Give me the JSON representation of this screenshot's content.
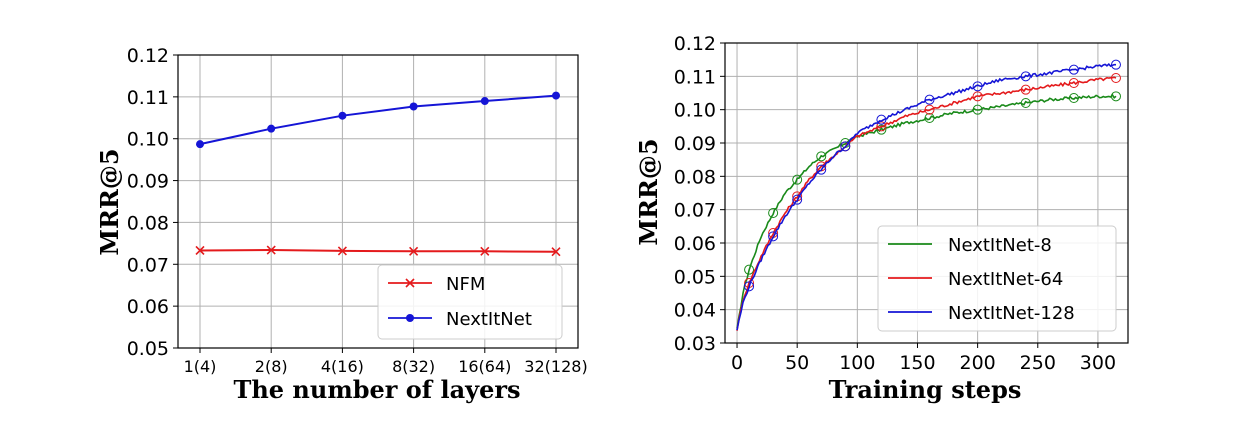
{
  "chart_data": [
    {
      "type": "line",
      "xlabel": "The number of layers",
      "ylabel": "MRR@5",
      "categories": [
        "1(4)",
        "2(8)",
        "4(16)",
        "8(32)",
        "16(64)",
        "32(128)"
      ],
      "ylim": [
        0.05,
        0.12
      ],
      "yticks": [
        "0.05",
        "0.06",
        "0.07",
        "0.08",
        "0.09",
        "0.10",
        "0.11",
        "0.12"
      ],
      "grid": true,
      "legend_position": "lower-right",
      "series": [
        {
          "name": "NFM",
          "color": "#e41a1c",
          "marker": "x",
          "values": [
            0.0733,
            0.0734,
            0.0732,
            0.0731,
            0.0731,
            0.073
          ]
        },
        {
          "name": "NextItNet",
          "color": "#1515d6",
          "marker": "circle",
          "values": [
            0.0987,
            0.1024,
            0.1055,
            0.1077,
            0.109,
            0.1103
          ]
        }
      ]
    },
    {
      "type": "line",
      "xlabel": "Training steps",
      "ylabel": "MRR@5",
      "xlim": [
        -10,
        325
      ],
      "xticks": [
        "0",
        "50",
        "100",
        "150",
        "200",
        "250",
        "300"
      ],
      "ylim": [
        0.03,
        0.12
      ],
      "yticks": [
        "0.03",
        "0.04",
        "0.05",
        "0.06",
        "0.07",
        "0.08",
        "0.09",
        "0.10",
        "0.11",
        "0.12"
      ],
      "grid": true,
      "legend_position": "lower-right",
      "series": [
        {
          "name": "NextItNet-8",
          "color": "#1a8a1a",
          "x": [
            0,
            5,
            10,
            20,
            30,
            40,
            50,
            60,
            70,
            80,
            90,
            100,
            120,
            140,
            160,
            180,
            200,
            220,
            240,
            260,
            280,
            300,
            315
          ],
          "y": [
            0.034,
            0.045,
            0.052,
            0.062,
            0.069,
            0.075,
            0.079,
            0.083,
            0.086,
            0.088,
            0.09,
            0.092,
            0.094,
            0.096,
            0.0975,
            0.099,
            0.1,
            0.101,
            0.102,
            0.103,
            0.1035,
            0.104,
            0.104
          ]
        },
        {
          "name": "NextItNet-64",
          "color": "#e41a1c",
          "x": [
            0,
            5,
            10,
            20,
            30,
            40,
            50,
            60,
            70,
            80,
            90,
            100,
            120,
            140,
            160,
            180,
            200,
            220,
            240,
            260,
            280,
            300,
            315
          ],
          "y": [
            0.034,
            0.043,
            0.048,
            0.056,
            0.063,
            0.069,
            0.074,
            0.079,
            0.083,
            0.086,
            0.089,
            0.092,
            0.095,
            0.098,
            0.1,
            0.102,
            0.104,
            0.105,
            0.106,
            0.107,
            0.108,
            0.109,
            0.1095
          ]
        },
        {
          "name": "NextItNet-128",
          "color": "#1515d6",
          "x": [
            0,
            5,
            10,
            20,
            30,
            40,
            50,
            60,
            70,
            80,
            90,
            100,
            120,
            140,
            160,
            180,
            200,
            220,
            240,
            260,
            280,
            300,
            315
          ],
          "y": [
            0.034,
            0.042,
            0.047,
            0.055,
            0.062,
            0.068,
            0.073,
            0.078,
            0.082,
            0.086,
            0.089,
            0.093,
            0.097,
            0.1,
            0.103,
            0.105,
            0.107,
            0.109,
            0.11,
            0.111,
            0.112,
            0.113,
            0.1135
          ]
        }
      ]
    }
  ]
}
